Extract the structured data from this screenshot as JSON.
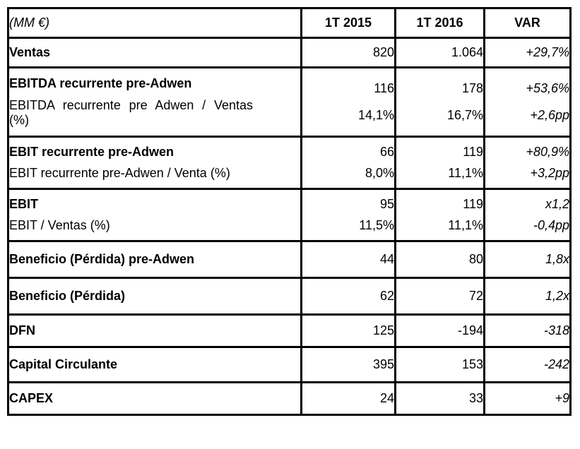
{
  "colors": {
    "header_green": "#92C83E",
    "label_gray": "#CBCBCB",
    "border_black": "#000000",
    "cell_white": "#FFFFFF"
  },
  "header": {
    "unit_label": "(MM €)",
    "columns": [
      "1T 2015",
      "1T 2016",
      "VAR"
    ]
  },
  "rows": [
    {
      "label": "Ventas",
      "v1": "820",
      "v2": "1.064",
      "var": "+29,7%"
    },
    {
      "label": "EBITDA recurrente pre-Adwen",
      "v1": "116",
      "v2": "178",
      "var": "+53,6%",
      "sub_label": "EBITDA recurrente pre Adwen / Ventas (%)",
      "sub_v1": "14,1%",
      "sub_v2": "16,7%",
      "sub_var": "+2,6pp"
    },
    {
      "label": "EBIT recurrente pre-Adwen",
      "v1": "66",
      "v2": "119",
      "var": "+80,9%",
      "sub_label": "EBIT recurrente pre-Adwen / Venta (%)",
      "sub_v1": "8,0%",
      "sub_v2": "11,1%",
      "sub_var": "+3,2pp"
    },
    {
      "label": "EBIT",
      "v1": "95",
      "v2": "119",
      "var": "x1,2",
      "sub_label": "EBIT / Ventas (%)",
      "sub_v1": "11,5%",
      "sub_v2": "11,1%",
      "sub_var": "-0,4pp"
    },
    {
      "label": "Beneficio (Pérdida) pre-Adwen",
      "v1": "44",
      "v2": "80",
      "var": "1,8x"
    },
    {
      "label": "Beneficio (Pérdida)",
      "v1": "62",
      "v2": "72",
      "var": "1,2x"
    },
    {
      "label": "DFN",
      "v1": "125",
      "v2": "-194",
      "var": "-318"
    },
    {
      "label": "Capital Circulante",
      "v1": "395",
      "v2": "153",
      "var": "-242"
    },
    {
      "label": "CAPEX",
      "v1": "24",
      "v2": "33",
      "var": "+9"
    }
  ]
}
